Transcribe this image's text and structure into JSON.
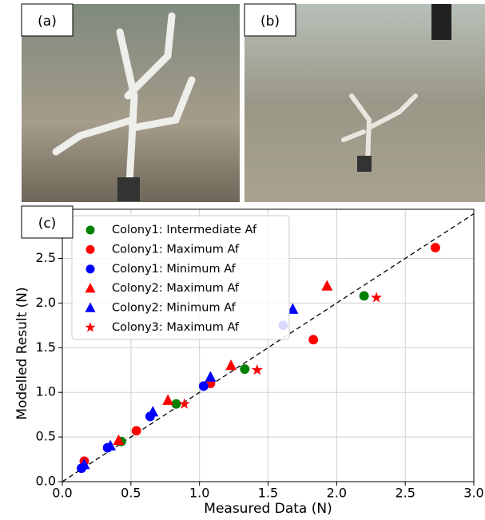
{
  "photos": [
    "(a)",
    "(b)"
  ],
  "chart_data": {
    "type": "scatter",
    "panel_label": "(c)",
    "xlabel": "Measured Data (N)",
    "ylabel": "Modelled Result (N)",
    "xlim": [
      0,
      3
    ],
    "ylim": [
      0,
      3.05
    ],
    "xticks": [
      {
        "value": 0,
        "label": "0.0"
      },
      {
        "value": 0.5,
        "label": "0.5"
      },
      {
        "value": 1,
        "label": "1.0"
      },
      {
        "value": 1.5,
        "label": "1.5"
      },
      {
        "value": 2,
        "label": "2.0"
      },
      {
        "value": 2.5,
        "label": "2.5"
      },
      {
        "value": 3,
        "label": "3.0"
      }
    ],
    "yticks": [
      {
        "value": 0,
        "label": "0.0"
      },
      {
        "value": 0.5,
        "label": "0.5"
      },
      {
        "value": 1,
        "label": "1.0"
      },
      {
        "value": 1.5,
        "label": "1.5"
      },
      {
        "value": 2,
        "label": "2.0"
      },
      {
        "value": 2.5,
        "label": "2.5"
      }
    ],
    "grid": true,
    "legend": "upper left",
    "series": [
      {
        "name": "Colony1: Intermediate Af",
        "color": "#008000",
        "marker": "circle",
        "x": [
          0.83,
          0.43,
          1.33,
          2.2
        ],
        "values": [
          0.87,
          0.45,
          1.26,
          2.08
        ]
      },
      {
        "name": "Colony1: Maximum Af",
        "color": "#ff0000",
        "marker": "circle",
        "x": [
          0.16,
          0.54,
          1.08,
          1.83,
          2.72
        ],
        "values": [
          0.23,
          0.57,
          1.1,
          1.59,
          2.62
        ]
      },
      {
        "name": "Colony1: Minimum Af",
        "color": "#0000ff",
        "marker": "circle",
        "x": [
          0.14,
          0.33,
          0.64,
          1.03,
          1.61
        ],
        "values": [
          0.15,
          0.38,
          0.73,
          1.07,
          1.75
        ]
      },
      {
        "name": "Colony2: Maximum Af",
        "color": "#ff0000",
        "marker": "triangle",
        "x": [
          0.41,
          0.77,
          1.23,
          1.93
        ],
        "values": [
          0.46,
          0.91,
          1.3,
          2.19
        ]
      },
      {
        "name": "Colony2: Minimum Af",
        "color": "#0000ff",
        "marker": "triangle",
        "x": [
          0.16,
          0.35,
          0.66,
          1.08,
          1.68
        ],
        "values": [
          0.19,
          0.4,
          0.78,
          1.17,
          1.93
        ]
      },
      {
        "name": "Colony3: Maximum Af",
        "color": "#ff0000",
        "marker": "star",
        "x": [
          0.89,
          1.42,
          2.29
        ],
        "values": [
          0.87,
          1.25,
          2.06
        ]
      }
    ]
  }
}
